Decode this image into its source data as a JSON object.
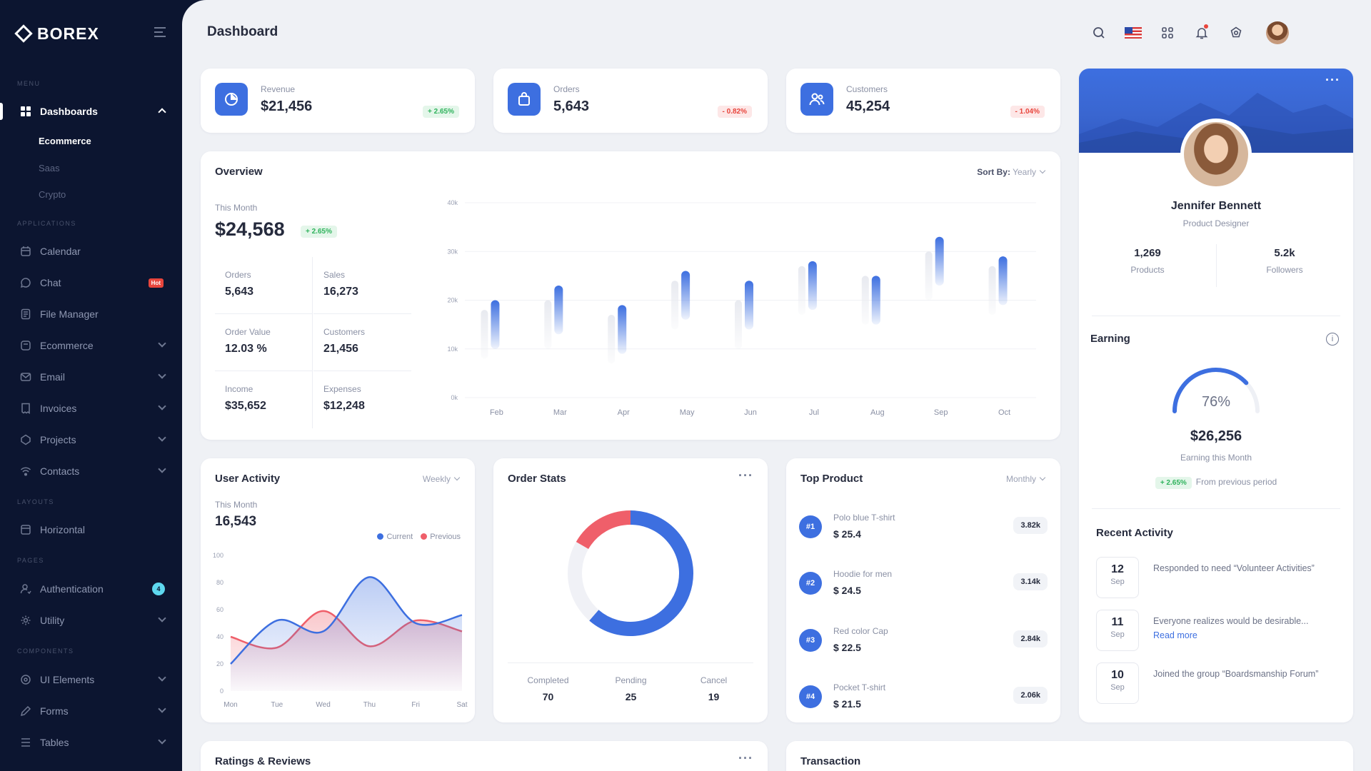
{
  "brand": {
    "name": "BOREX"
  },
  "sidebar": {
    "sections": {
      "menu": "MENU",
      "applications": "APPLICATIONS",
      "layouts": "LAYOUTS",
      "pages": "PAGES",
      "components": "COMPONENTS"
    },
    "dashboards": {
      "label": "Dashboards",
      "sub": [
        "Ecommerce",
        "Saas",
        "Crypto"
      ]
    },
    "apps": [
      {
        "label": "Calendar"
      },
      {
        "label": "Chat",
        "badge": "Hot"
      },
      {
        "label": "File Manager"
      },
      {
        "label": "Ecommerce"
      },
      {
        "label": "Email"
      },
      {
        "label": "Invoices"
      },
      {
        "label": "Projects"
      },
      {
        "label": "Contacts"
      }
    ],
    "layouts": [
      {
        "label": "Horizontal"
      }
    ],
    "pages": [
      {
        "label": "Authentication",
        "badge": "4"
      },
      {
        "label": "Utility"
      }
    ],
    "components": [
      {
        "label": "UI Elements"
      },
      {
        "label": "Forms"
      },
      {
        "label": "Tables"
      }
    ]
  },
  "header": {
    "title": "Dashboard",
    "icons": [
      "search-icon",
      "flag-us-icon",
      "apps-grid-icon",
      "bell-icon",
      "settings-icon",
      "user-avatar"
    ]
  },
  "stats": [
    {
      "label": "Revenue",
      "value": "$21,456",
      "change": "+ 2.65%",
      "trend": "up",
      "icon": "pie-chart-icon"
    },
    {
      "label": "Orders",
      "value": "5,643",
      "change": "- 0.82%",
      "trend": "down",
      "icon": "shopping-bag-icon"
    },
    {
      "label": "Customers",
      "value": "45,254",
      "change": "- 1.04%",
      "trend": "down",
      "icon": "users-icon"
    }
  ],
  "overview": {
    "title": "Overview",
    "sort_label": "Sort By:",
    "sort_value": "Yearly",
    "this_month_label": "This Month",
    "amount": "$24,568",
    "change": "+ 2.65%",
    "metrics": [
      {
        "label": "Orders",
        "value": "5,643"
      },
      {
        "label": "Sales",
        "value": "16,273"
      },
      {
        "label": "Order Value",
        "value": "12.03 %"
      },
      {
        "label": "Customers",
        "value": "21,456"
      },
      {
        "label": "Income",
        "value": "$35,652"
      },
      {
        "label": "Expenses",
        "value": "$12,248"
      }
    ]
  },
  "chart_data": [
    {
      "type": "bar",
      "title": "Overview",
      "categories": [
        "Feb",
        "Mar",
        "Apr",
        "May",
        "Jun",
        "Jul",
        "Aug",
        "Sep",
        "Oct"
      ],
      "ytick_labels": [
        "0k",
        "10k",
        "20k",
        "30k",
        "40k"
      ],
      "ylim": [
        0,
        40
      ],
      "series": [
        {
          "values": [
            20,
            23,
            19,
            26,
            24,
            28,
            25,
            33,
            29
          ]
        },
        {
          "values": [
            18,
            20,
            17,
            24,
            20,
            27,
            25,
            30,
            27
          ]
        }
      ]
    },
    {
      "type": "area",
      "title": "User Activity",
      "categories": [
        "Mon",
        "Tue",
        "Wed",
        "Thu",
        "Fri",
        "Sat"
      ],
      "ylim": [
        0,
        100
      ],
      "ytick_labels": [
        "0",
        "20",
        "40",
        "60",
        "80",
        "100"
      ],
      "series": [
        {
          "name": "Current",
          "color": "#3d6fe0",
          "values": [
            20,
            52,
            44,
            84,
            50,
            56
          ]
        },
        {
          "name": "Previous",
          "color": "#ef5f6a",
          "values": [
            40,
            32,
            59,
            33,
            52,
            44
          ]
        }
      ]
    },
    {
      "type": "pie",
      "title": "Order Stats",
      "labels": [
        "Completed",
        "Pending",
        "Cancel"
      ],
      "values": [
        70,
        25,
        19
      ],
      "colors": [
        "#3d6fe0",
        "#f0f1f6",
        "#ef5f6a"
      ]
    }
  ],
  "user_activity": {
    "title": "User Activity",
    "filter": "Weekly",
    "this_month_label": "This Month",
    "value": "16,543",
    "legend": [
      "Current",
      "Previous"
    ]
  },
  "order_stats": {
    "title": "Order Stats",
    "stats": [
      {
        "label": "Completed",
        "value": "70"
      },
      {
        "label": "Pending",
        "value": "25"
      },
      {
        "label": "Cancel",
        "value": "19"
      }
    ]
  },
  "top_product": {
    "title": "Top Product",
    "filter": "Monthly",
    "items": [
      {
        "rank": "#1",
        "name": "Polo blue T-shirt",
        "price": "$ 25.4",
        "sales": "3.82k"
      },
      {
        "rank": "#2",
        "name": "Hoodie for men",
        "price": "$ 24.5",
        "sales": "3.14k"
      },
      {
        "rank": "#3",
        "name": "Red color Cap",
        "price": "$ 22.5",
        "sales": "2.84k"
      },
      {
        "rank": "#4",
        "name": "Pocket T-shirt",
        "price": "$ 21.5",
        "sales": "2.06k"
      }
    ]
  },
  "profile": {
    "name": "Jennifer Bennett",
    "role": "Product Designer",
    "stats": [
      {
        "value": "1,269",
        "label": "Products"
      },
      {
        "value": "5.2k",
        "label": "Followers"
      }
    ]
  },
  "earning": {
    "title": "Earning",
    "percent": "76%",
    "amount": "$26,256",
    "caption": "Earning this Month",
    "change": "+ 2.65%",
    "change_caption": "From previous period",
    "progress": 0.76
  },
  "recent_activity": {
    "title": "Recent Activity",
    "items": [
      {
        "day": "12",
        "month": "Sep",
        "text": "Responded to need “Volunteer Activities”"
      },
      {
        "day": "11",
        "month": "Sep",
        "text": "Everyone realizes would be desirable...",
        "link": "Read more"
      },
      {
        "day": "10",
        "month": "Sep",
        "text": "Joined the group “Boardsmanship Forum”"
      }
    ]
  },
  "bottom": {
    "ratings_title": "Ratings & Reviews",
    "transaction_title": "Transaction"
  }
}
